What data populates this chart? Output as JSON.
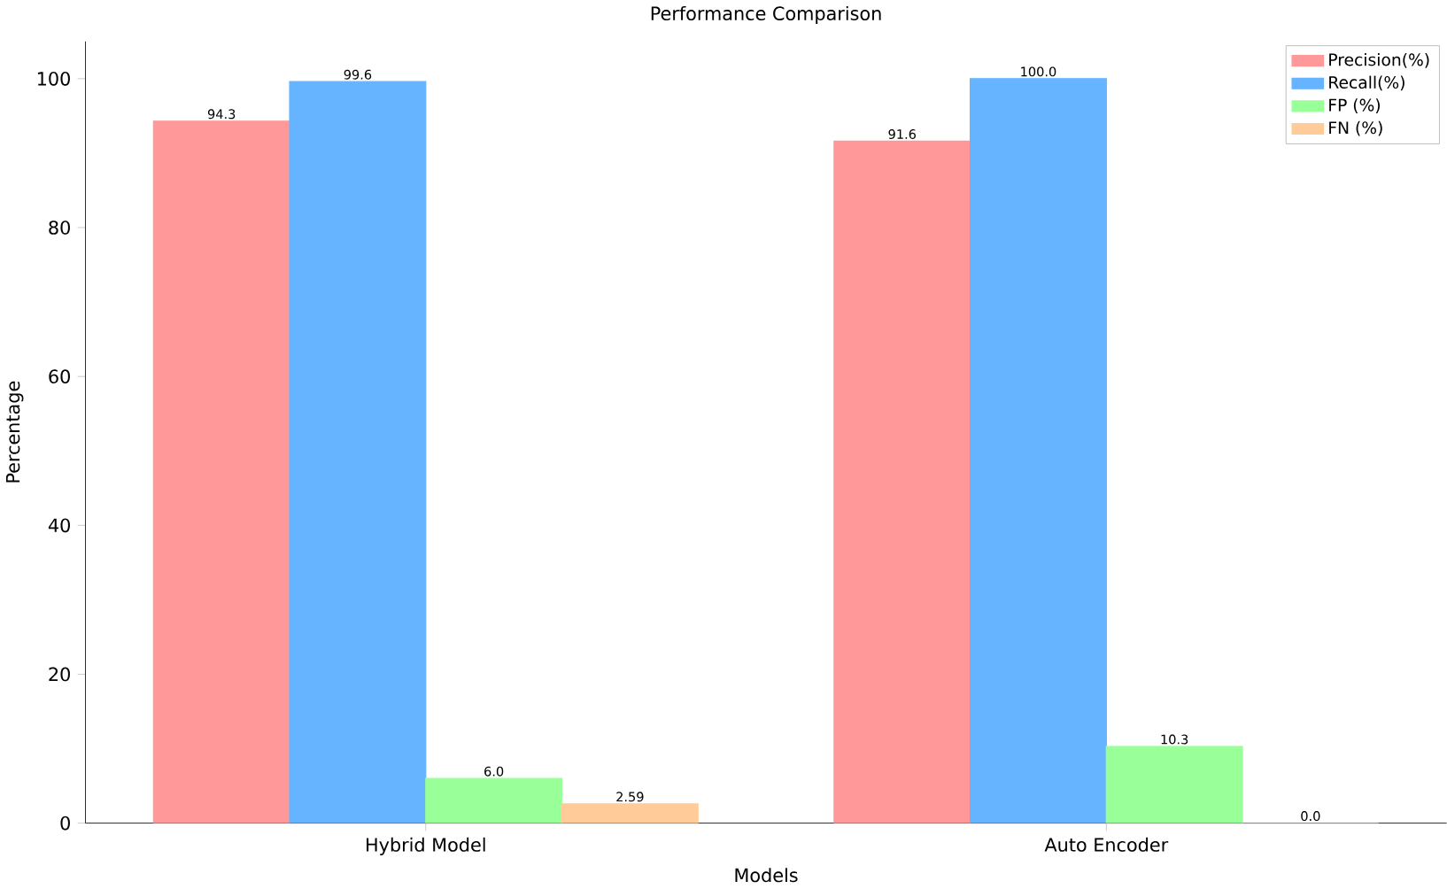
{
  "chart_data": {
    "type": "bar",
    "title": "Performance Comparison",
    "xlabel": "Models",
    "ylabel": "Percentage",
    "categories": [
      "Hybrid Model",
      "Auto Encoder"
    ],
    "ylim": [
      0,
      105
    ],
    "yticks": [
      0,
      20,
      40,
      60,
      80,
      100
    ],
    "legend": "top right",
    "series": [
      {
        "name": "Precision(%)",
        "color": "#ff9999",
        "values": [
          94.3,
          91.6
        ],
        "value_labels": [
          "94.3",
          "91.6"
        ]
      },
      {
        "name": "Recall(%)",
        "color": "#66b3ff",
        "values": [
          99.6,
          100.0
        ],
        "value_labels": [
          "99.6",
          "100.0"
        ]
      },
      {
        "name": "FP (%)",
        "color": "#99ff99",
        "values": [
          6.0,
          10.3
        ],
        "value_labels": [
          "6.0",
          "10.3"
        ]
      },
      {
        "name": "FN (%)",
        "color": "#ffcc99",
        "values": [
          2.59,
          0.0
        ],
        "value_labels": [
          "2.59",
          "0.0"
        ]
      }
    ]
  }
}
